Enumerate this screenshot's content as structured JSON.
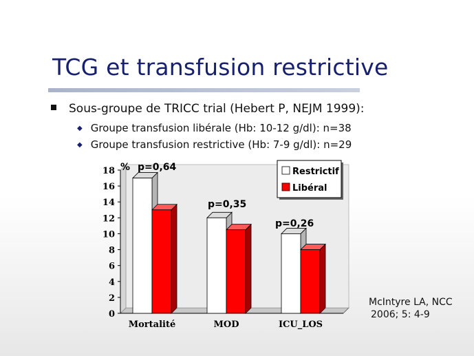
{
  "title": "TCG et transfusion restrictive",
  "bullet": "Sous-groupe de TRICC trial (Hebert P, NEJM 1999):",
  "sub_bullets": [
    "Groupe transfusion libérale (Hb: 10-12 g/dl): n=38",
    "Groupe transfusion restrictive (Hb: 7-9 g/dl): n=29"
  ],
  "citation": {
    "line1": "McIntyre LA, NCC",
    "line2": "2006; 5: 4-9"
  },
  "colors": {
    "title": "#16206e",
    "restrictif": "#ffffff",
    "liberal": "#ff0000"
  },
  "chart_data": {
    "type": "bar",
    "ylabel": "%",
    "ylim": [
      0,
      18
    ],
    "yticks": [
      0,
      2,
      4,
      6,
      8,
      10,
      12,
      14,
      16,
      18
    ],
    "categories": [
      "Mortalité",
      "MOD",
      "ICU_LOS"
    ],
    "series": [
      {
        "name": "Restrictif",
        "values": [
          17,
          12,
          10
        ]
      },
      {
        "name": "Libéral",
        "values": [
          13,
          10.5,
          8
        ]
      }
    ],
    "annotations": [
      "p=0,64",
      "p=0,35",
      "p=0,26"
    ],
    "legend_position": "top-right",
    "grid": false
  }
}
